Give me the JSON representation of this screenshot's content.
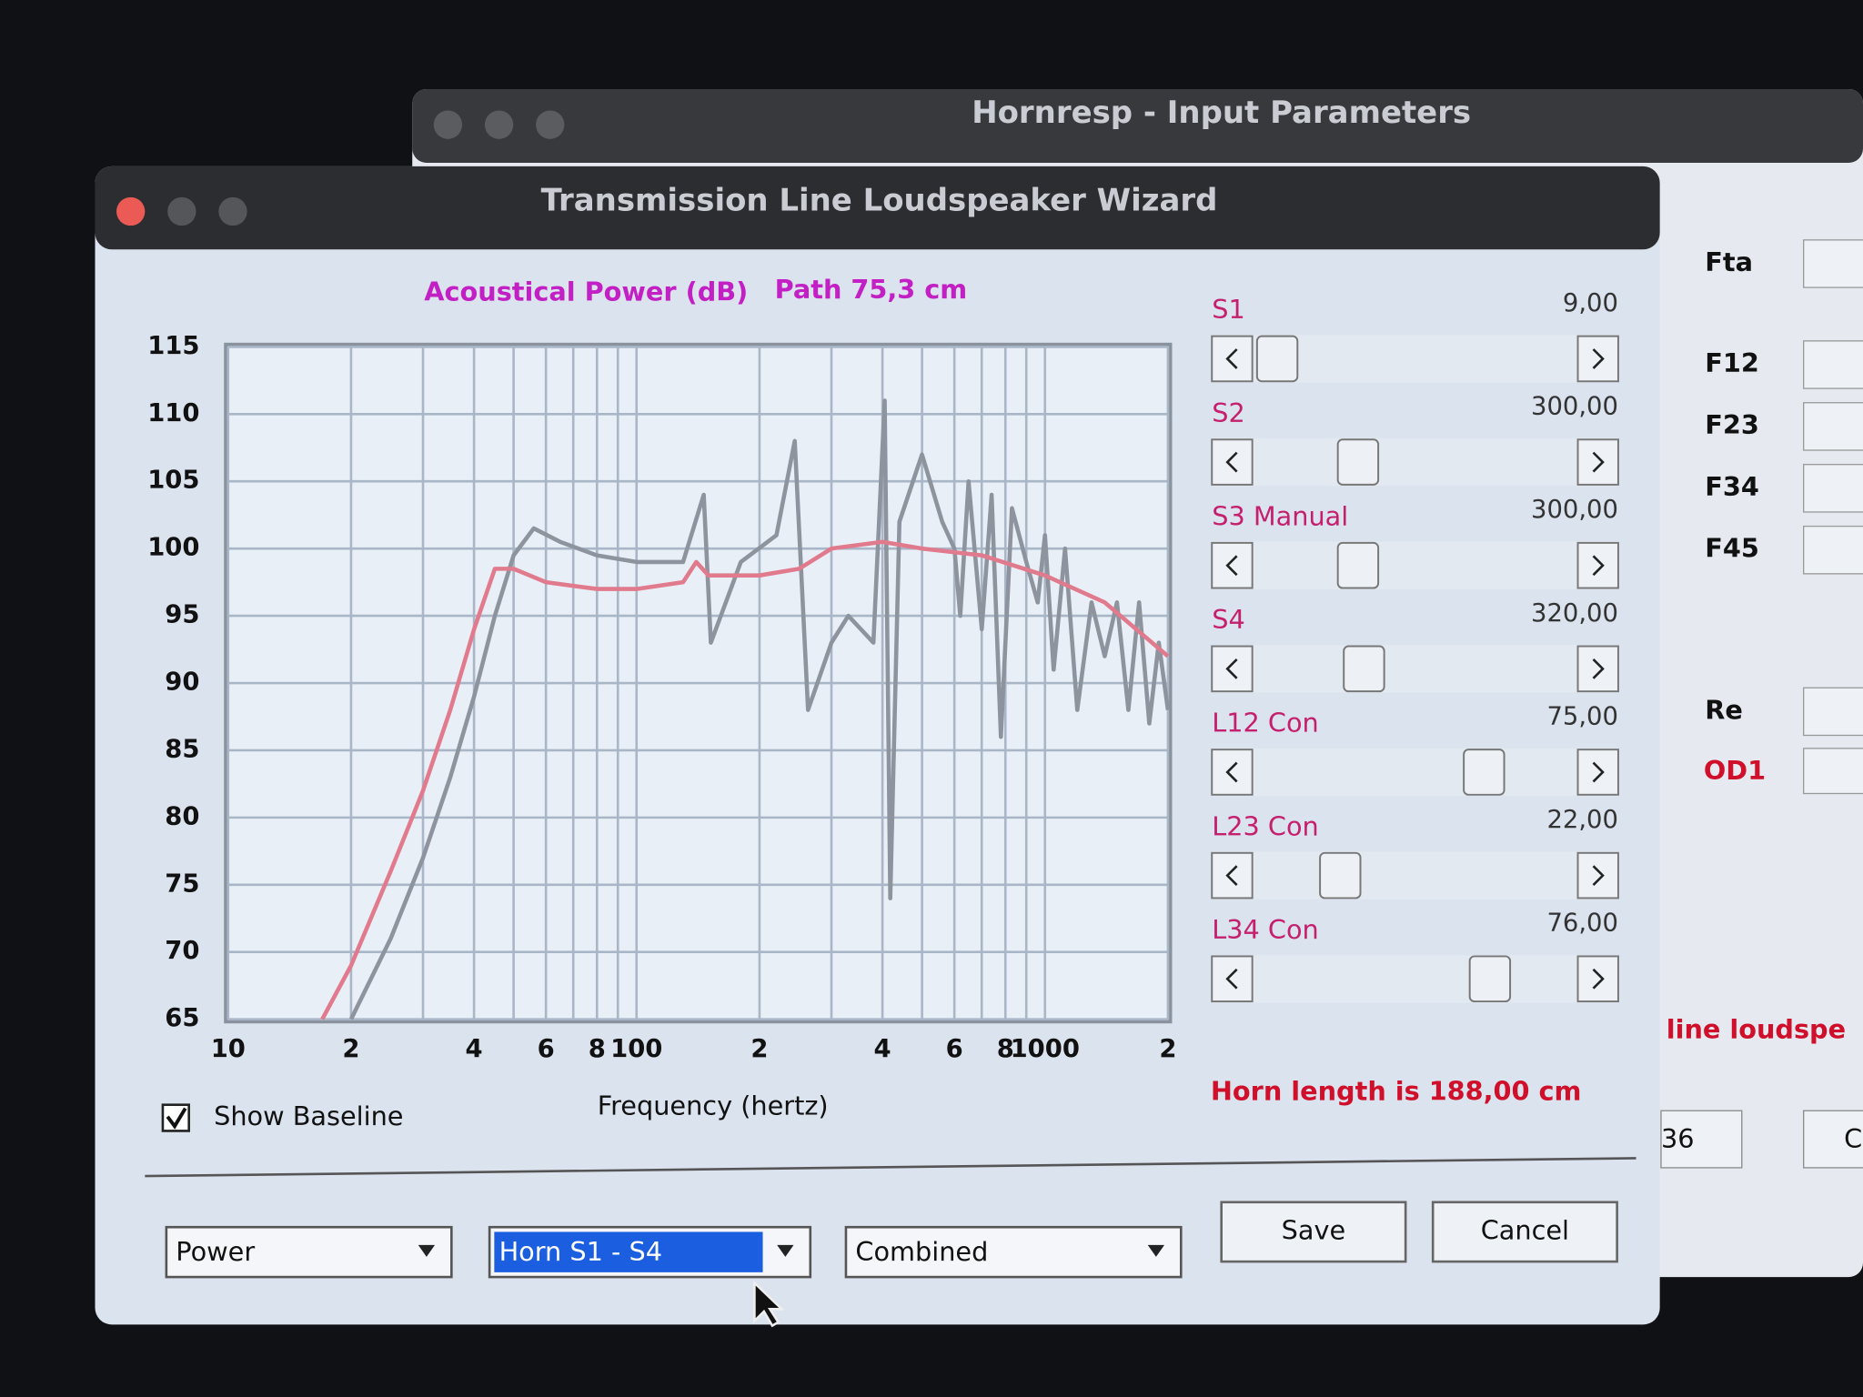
{
  "back_window": {
    "title": "Hornresp - Input Parameters",
    "fields": [
      "Fta",
      "F12",
      "F23",
      "F34",
      "F45",
      "Re"
    ],
    "red_field": "OD1",
    "red_text": "line loudspe",
    "partial_field": "36",
    "partial_button": "C"
  },
  "window": {
    "title": "Transmission Line Loudspeaker Wizard",
    "chart_heading": "Acoustical Power (dB)",
    "path_label": "Path 75,3 cm",
    "horn_length": "Horn length is 188,00 cm",
    "checkbox": "Show Baseline",
    "checkbox_checked": true
  },
  "controls": {
    "sliders": [
      {
        "label": "S1",
        "value": "9,00"
      },
      {
        "label": "S2",
        "value": "300,00"
      },
      {
        "label": "S3 Manual",
        "value": "300,00"
      },
      {
        "label": "S4",
        "value": "320,00"
      },
      {
        "label": "L12 Con",
        "value": "75,00"
      },
      {
        "label": "L23 Con",
        "value": "22,00"
      },
      {
        "label": "L34 Con",
        "value": "76,00"
      }
    ],
    "dropdowns": [
      "Power",
      "Horn S1 - S4",
      "Combined"
    ],
    "buttons": [
      "Save",
      "Cancel"
    ]
  },
  "chart_data": {
    "type": "line",
    "xlabel": "Frequency (hertz)",
    "xscale": "log",
    "xlim": [
      10,
      2000
    ],
    "ylim": [
      65,
      115
    ],
    "xticks": [
      10,
      {
        "value": 20,
        "label": "2"
      },
      {
        "value": 40,
        "label": "4"
      },
      {
        "value": 60,
        "label": "6"
      },
      {
        "value": 80,
        "label": "8"
      },
      100,
      {
        "value": 200,
        "label": "2"
      },
      {
        "value": 400,
        "label": "4"
      },
      {
        "value": 600,
        "label": "6"
      },
      {
        "value": 800,
        "label": "8"
      },
      1000,
      {
        "value": 2000,
        "label": "2"
      }
    ],
    "xminor_ticks": [
      30,
      50,
      70,
      90,
      300,
      500,
      700,
      900
    ],
    "yticks": [
      65,
      70,
      75,
      80,
      85,
      90,
      95,
      100,
      105,
      110,
      115
    ],
    "grid": true,
    "series": [
      {
        "color": "#e07a8c",
        "x": [
          17,
          20,
          25,
          30,
          35,
          40,
          45,
          50,
          60,
          80,
          100,
          130,
          140,
          150,
          200,
          250,
          300,
          400,
          500,
          700,
          1000,
          1400,
          2000
        ],
        "values": [
          65,
          69,
          76,
          82,
          88,
          94,
          98.5,
          98.5,
          97.5,
          97,
          97,
          97.5,
          99,
          98,
          98,
          98.5,
          100,
          100.5,
          100,
          99.5,
          98,
          96,
          92
        ]
      },
      {
        "color": "#8e949e",
        "x": [
          20,
          25,
          30,
          35,
          40,
          45,
          50,
          56,
          65,
          80,
          100,
          130,
          146,
          152,
          180,
          220,
          244,
          263,
          300,
          330,
          380,
          405,
          418,
          440,
          500,
          560,
          600,
          620,
          650,
          700,
          740,
          780,
          830,
          900,
          960,
          1000,
          1050,
          1120,
          1200,
          1300,
          1400,
          1500,
          1600,
          1700,
          1800,
          1900,
          2000
        ],
        "values": [
          65,
          71,
          77,
          83,
          89,
          95,
          99.5,
          101.5,
          100.5,
          99.5,
          99,
          99,
          104,
          93,
          99,
          101,
          108,
          88,
          93,
          95,
          93,
          111,
          74,
          102,
          107,
          102,
          100,
          95,
          105,
          94,
          104,
          86,
          103,
          99,
          96,
          101,
          91,
          100,
          88,
          96,
          92,
          96,
          88,
          96,
          87,
          93,
          88
        ]
      }
    ]
  }
}
